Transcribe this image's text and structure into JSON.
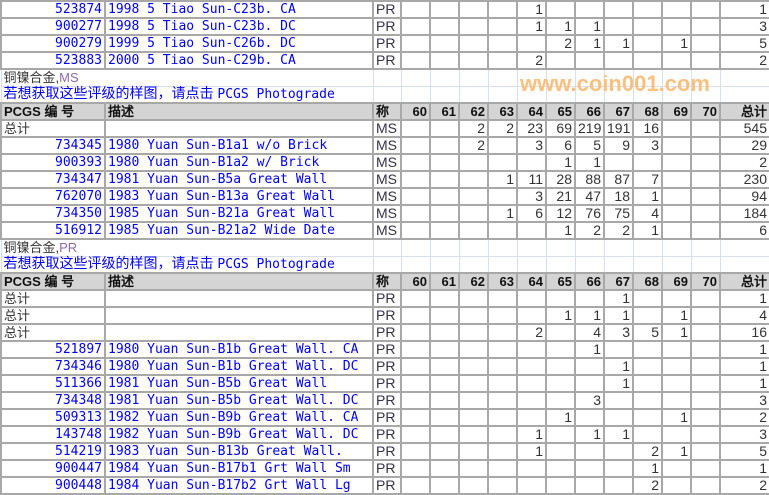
{
  "grades": [
    "60",
    "61",
    "62",
    "63",
    "64",
    "65",
    "66",
    "67",
    "68",
    "69",
    "70"
  ],
  "top_rows": [
    {
      "id": "523874",
      "desc": "1998 5 Tiao Sun-C23b. CA",
      "kind": "PR",
      "g": {
        "64": "1"
      },
      "total": "1"
    },
    {
      "id": "900277",
      "desc": "1998 5 Tiao Sun-C23b. DC",
      "kind": "PR",
      "g": {
        "64": "1",
        "65": "1",
        "66": "1"
      },
      "total": "3"
    },
    {
      "id": "900279",
      "desc": "1999 5 Tiao Sun-C26b. DC",
      "kind": "PR",
      "g": {
        "65": "2",
        "66": "1",
        "67": "1",
        "69": "1"
      },
      "total": "5"
    },
    {
      "id": "523883",
      "desc": "2000 5 Tiao Sun-C29b. CA",
      "kind": "PR",
      "g": {
        "64": "2"
      },
      "total": "2"
    }
  ],
  "sections": [
    {
      "metal": "铜镍合金,",
      "type": "MS",
      "photograde_text": "若想获取这些评级的样图，请点击",
      "photograde_link": "PCGS Photograde",
      "header": {
        "id": "PCGS 编 号",
        "desc": "描述",
        "kind": "称",
        "total": "总计"
      },
      "rows": [
        {
          "id": "总计",
          "desc": "",
          "kind": "MS",
          "g": {
            "62": "2",
            "63": "2",
            "64": "23",
            "65": "69",
            "66": "219",
            "67": "191",
            "68": "16"
          },
          "total": "545"
        },
        {
          "id": "734345",
          "desc": "1980 Yuan Sun-B1a1 w/o Brick",
          "kind": "MS",
          "g": {
            "62": "2",
            "64": "3",
            "65": "6",
            "66": "5",
            "67": "9",
            "68": "3"
          },
          "total": "29"
        },
        {
          "id": "900393",
          "desc": "1980 Yuan Sun-B1a2 w/ Brick",
          "kind": "MS",
          "g": {
            "65": "1",
            "66": "1"
          },
          "total": "2"
        },
        {
          "id": "734347",
          "desc": "1981 Yuan Sun-B5a Great Wall",
          "kind": "MS",
          "g": {
            "63": "1",
            "64": "11",
            "65": "28",
            "66": "88",
            "67": "87",
            "68": "7"
          },
          "total": "230"
        },
        {
          "id": "762070",
          "desc": "1983 Yuan Sun-B13a Great Wall",
          "kind": "MS",
          "g": {
            "64": "3",
            "65": "21",
            "66": "47",
            "67": "18",
            "68": "1"
          },
          "total": "94"
        },
        {
          "id": "734350",
          "desc": "1985 Yuan Sun-B21a Great Wall",
          "kind": "MS",
          "g": {
            "63": "1",
            "64": "6",
            "65": "12",
            "66": "76",
            "67": "75",
            "68": "4"
          },
          "total": "184"
        },
        {
          "id": "516912",
          "desc": "1985 Yuan Sun-B21a2 Wide Date",
          "kind": "MS",
          "g": {
            "65": "1",
            "66": "2",
            "67": "2",
            "68": "1"
          },
          "total": "6"
        }
      ]
    },
    {
      "metal": "铜镍合金,",
      "type": "PR",
      "photograde_text": "若想获取这些评级的样图，请点击",
      "photograde_link": "PCGS Photograde",
      "header": {
        "id": "PCGS 编 号",
        "desc": "描述",
        "kind": "称",
        "total": "总计"
      },
      "rows": [
        {
          "id": "总计",
          "desc": "",
          "kind": "PR",
          "g": {
            "67": "1"
          },
          "total": "1"
        },
        {
          "id": "总计",
          "desc": "",
          "kind": "PR",
          "g": {
            "65": "1",
            "66": "1",
            "67": "1",
            "69": "1"
          },
          "total": "4"
        },
        {
          "id": "总计",
          "desc": "",
          "kind": "PR",
          "g": {
            "64": "2",
            "66": "4",
            "67": "3",
            "68": "5",
            "69": "1"
          },
          "total": "16"
        },
        {
          "id": "521897",
          "desc": "1980 Yuan Sun-B1b Great Wall. CA",
          "kind": "PR",
          "g": {
            "66": "1"
          },
          "total": "1"
        },
        {
          "id": "734346",
          "desc": "1980 Yuan Sun-B1b Great Wall. DC",
          "kind": "PR",
          "g": {
            "67": "1"
          },
          "total": "1"
        },
        {
          "id": "511366",
          "desc": "1981 Yuan Sun-B5b Great Wall",
          "kind": "PR",
          "g": {
            "67": "1"
          },
          "total": "1"
        },
        {
          "id": "734348",
          "desc": "1981 Yuan Sun-B5b Great Wall. DC",
          "kind": "PR",
          "g": {
            "66": "3"
          },
          "total": "3"
        },
        {
          "id": "509313",
          "desc": "1982 Yuan Sun-B9b Great Wall. CA",
          "kind": "PR",
          "g": {
            "65": "1",
            "69": "1"
          },
          "total": "2"
        },
        {
          "id": "143748",
          "desc": "1982 Yuan Sun-B9b Great Wall. DC",
          "kind": "PR",
          "g": {
            "64": "1",
            "66": "1",
            "67": "1"
          },
          "total": "3"
        },
        {
          "id": "514219",
          "desc": "1983 Yuan Sun-B13b Great Wall.",
          "kind": "PR",
          "g": {
            "64": "1",
            "68": "2",
            "69": "1"
          },
          "total": "5"
        },
        {
          "id": "900447",
          "desc": "1984 Yuan Sun-B17b1 Grt Wall Sm",
          "kind": "PR",
          "g": {
            "68": "1"
          },
          "total": "1"
        },
        {
          "id": "900448",
          "desc": "1984 Yuan Sun-B17b2 Grt Wall Lg",
          "kind": "PR",
          "g": {
            "68": "2"
          },
          "total": "2"
        }
      ]
    }
  ],
  "watermark": "www.coin001.com"
}
